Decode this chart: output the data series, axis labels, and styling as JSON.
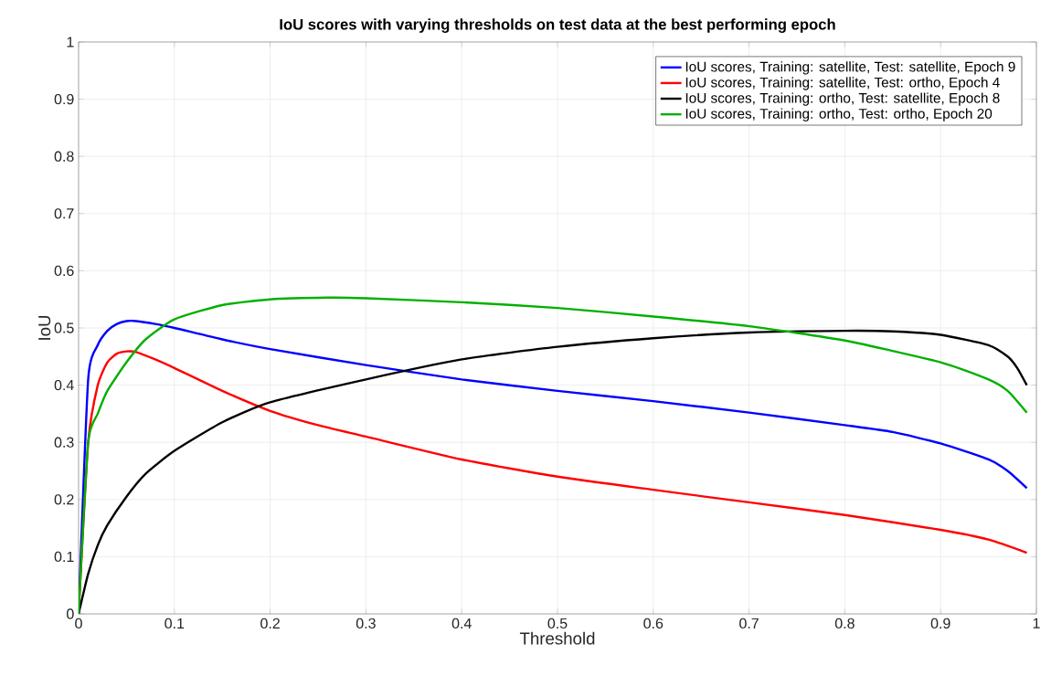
{
  "chart_data": {
    "type": "line",
    "title": "IoU scores with varying thresholds on test data at the best performing epoch",
    "xlabel": "Threshold",
    "ylabel": "IoU",
    "xlim": [
      0,
      1
    ],
    "ylim": [
      0,
      1
    ],
    "xticks": [
      0,
      0.1,
      0.2,
      0.3,
      0.4,
      0.5,
      0.6,
      0.7,
      0.8,
      0.9,
      1
    ],
    "yticks": [
      0,
      0.1,
      0.2,
      0.3,
      0.4,
      0.5,
      0.6,
      0.7,
      0.8,
      0.9,
      1
    ],
    "grid": true,
    "legend": "top right",
    "line_style": "solid",
    "marker": "none",
    "series": [
      {
        "name": "IoU scores, Training: satellite, Test: satellite, Epoch 9",
        "color": "#0000ff",
        "x": [
          0,
          0.01,
          0.02,
          0.03,
          0.04,
          0.05,
          0.06,
          0.08,
          0.1,
          0.15,
          0.2,
          0.3,
          0.4,
          0.5,
          0.6,
          0.7,
          0.8,
          0.85,
          0.9,
          0.95,
          0.97,
          0.99
        ],
        "values": [
          0,
          0.41,
          0.47,
          0.495,
          0.507,
          0.512,
          0.512,
          0.507,
          0.5,
          0.48,
          0.463,
          0.435,
          0.41,
          0.39,
          0.372,
          0.352,
          0.33,
          0.318,
          0.298,
          0.27,
          0.25,
          0.22
        ]
      },
      {
        "name": "IoU scores, Training: satellite, Test: ortho, Epoch 4",
        "color": "#ff0000",
        "x": [
          0,
          0.01,
          0.02,
          0.03,
          0.04,
          0.05,
          0.06,
          0.08,
          0.1,
          0.15,
          0.2,
          0.25,
          0.3,
          0.4,
          0.5,
          0.6,
          0.7,
          0.8,
          0.9,
          0.95,
          0.99
        ],
        "values": [
          0,
          0.3,
          0.4,
          0.44,
          0.455,
          0.459,
          0.458,
          0.445,
          0.43,
          0.39,
          0.355,
          0.33,
          0.31,
          0.27,
          0.24,
          0.217,
          0.195,
          0.173,
          0.147,
          0.13,
          0.107
        ]
      },
      {
        "name": "IoU scores, Training: ortho, Test: satellite, Epoch 8",
        "color": "#000000",
        "x": [
          0,
          0.01,
          0.02,
          0.03,
          0.05,
          0.07,
          0.1,
          0.15,
          0.2,
          0.3,
          0.4,
          0.5,
          0.6,
          0.7,
          0.8,
          0.85,
          0.9,
          0.95,
          0.97,
          0.98,
          0.99
        ],
        "values": [
          0,
          0.07,
          0.12,
          0.155,
          0.205,
          0.245,
          0.285,
          0.335,
          0.37,
          0.41,
          0.445,
          0.467,
          0.482,
          0.492,
          0.495,
          0.494,
          0.488,
          0.47,
          0.45,
          0.43,
          0.4
        ]
      },
      {
        "name": "IoU scores, Training: ortho, Test: ortho, Epoch 20",
        "color": "#00b000",
        "x": [
          0,
          0.01,
          0.02,
          0.03,
          0.05,
          0.07,
          0.1,
          0.15,
          0.2,
          0.26,
          0.3,
          0.4,
          0.5,
          0.6,
          0.7,
          0.8,
          0.9,
          0.95,
          0.97,
          0.99
        ],
        "values": [
          0,
          0.3,
          0.35,
          0.39,
          0.44,
          0.48,
          0.515,
          0.54,
          0.55,
          0.553,
          0.552,
          0.545,
          0.535,
          0.52,
          0.503,
          0.478,
          0.44,
          0.41,
          0.39,
          0.352
        ]
      }
    ]
  }
}
